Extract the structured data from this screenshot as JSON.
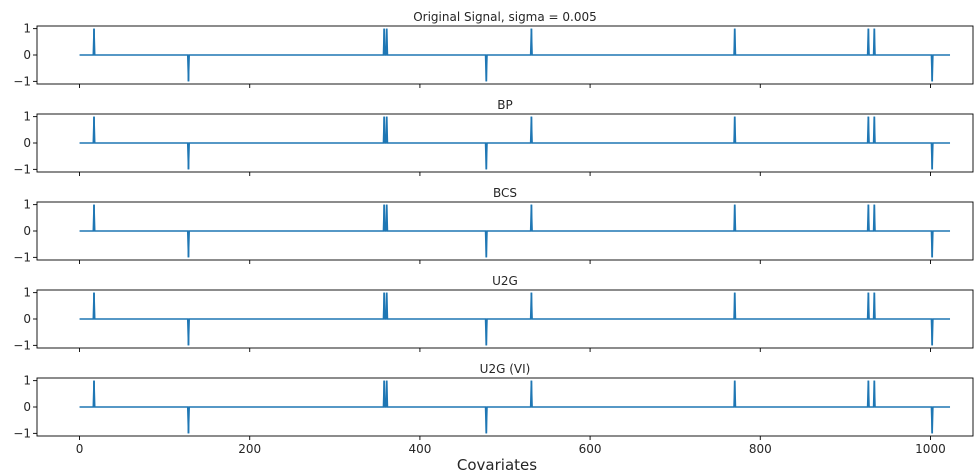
{
  "chart_data": {
    "type": "line",
    "xlabel": "Covariates",
    "xlim": [
      -50,
      1050
    ],
    "ylim": [
      -1.1,
      1.1
    ],
    "n_covariates": 1024,
    "line_color": "#1f77b4",
    "x_ticks": [
      0,
      200,
      400,
      600,
      800,
      1000
    ],
    "y_ticks": [
      1,
      0,
      -1
    ],
    "y_tick_labels": [
      "1",
      "0",
      "−1"
    ],
    "spikes": [
      {
        "x": 17,
        "y": 1
      },
      {
        "x": 128,
        "y": -1
      },
      {
        "x": 358,
        "y": 1
      },
      {
        "x": 361,
        "y": 1
      },
      {
        "x": 478,
        "y": -1
      },
      {
        "x": 531,
        "y": 1
      },
      {
        "x": 770,
        "y": 1
      },
      {
        "x": 927,
        "y": 1
      },
      {
        "x": 934,
        "y": 1
      },
      {
        "x": 1002,
        "y": -1
      }
    ],
    "panels": [
      {
        "title": "Original Signal, sigma = 0.005"
      },
      {
        "title": "BP"
      },
      {
        "title": "BCS"
      },
      {
        "title": "U2G"
      },
      {
        "title": "U2G (VI)"
      }
    ]
  }
}
